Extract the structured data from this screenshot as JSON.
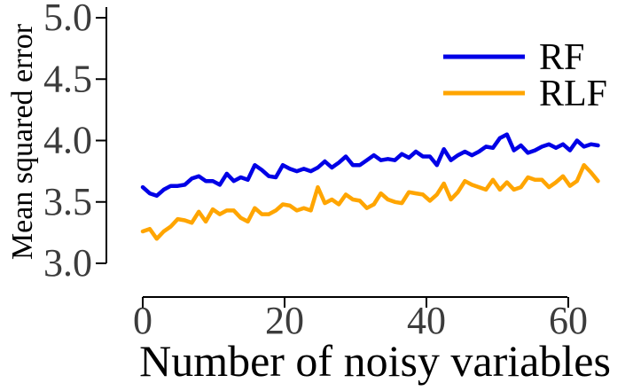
{
  "chart_data": {
    "type": "line",
    "title": "",
    "xlabel": "Number of noisy variables",
    "ylabel": "Mean squared error",
    "xlim": [
      -2,
      69
    ],
    "ylim": [
      2.95,
      5.05
    ],
    "xticks": [
      0,
      20,
      40,
      60
    ],
    "yticks": [
      3.0,
      3.5,
      4.0,
      4.5,
      5.0
    ],
    "xtick_labels": [
      "0",
      "20",
      "40",
      "60"
    ],
    "ytick_labels": [
      "3.0",
      "3.5",
      "4.0",
      "4.5",
      "5.0"
    ],
    "legend_position": "top-right",
    "x": [
      0,
      1,
      2,
      3,
      4,
      5,
      6,
      7,
      8,
      9,
      10,
      11,
      12,
      13,
      14,
      15,
      16,
      17,
      18,
      19,
      20,
      21,
      22,
      23,
      24,
      25,
      26,
      27,
      28,
      29,
      30,
      31,
      32,
      33,
      34,
      35,
      36,
      37,
      38,
      39,
      40,
      41,
      42,
      43,
      44,
      45,
      46,
      47,
      48,
      49,
      50,
      51,
      52,
      53,
      54,
      55,
      56,
      57,
      58,
      59,
      60,
      61,
      62,
      63,
      64,
      65
    ],
    "series": [
      {
        "name": "RF",
        "color": "#0000e6",
        "values": [
          3.62,
          3.57,
          3.55,
          3.6,
          3.63,
          3.63,
          3.64,
          3.69,
          3.71,
          3.67,
          3.67,
          3.64,
          3.73,
          3.67,
          3.7,
          3.68,
          3.8,
          3.76,
          3.71,
          3.7,
          3.8,
          3.77,
          3.75,
          3.77,
          3.75,
          3.78,
          3.83,
          3.78,
          3.82,
          3.87,
          3.8,
          3.8,
          3.84,
          3.88,
          3.84,
          3.85,
          3.84,
          3.89,
          3.86,
          3.91,
          3.87,
          3.87,
          3.8,
          3.93,
          3.84,
          3.88,
          3.91,
          3.88,
          3.91,
          3.95,
          3.94,
          4.02,
          4.05,
          3.92,
          3.96,
          3.9,
          3.92,
          3.95,
          3.97,
          3.94,
          3.97,
          3.92,
          4.0,
          3.95,
          3.97,
          3.96
        ]
      },
      {
        "name": "RLF",
        "color": "#ffa500",
        "values": [
          3.26,
          3.28,
          3.2,
          3.26,
          3.3,
          3.36,
          3.35,
          3.33,
          3.42,
          3.34,
          3.44,
          3.4,
          3.43,
          3.43,
          3.37,
          3.34,
          3.45,
          3.4,
          3.4,
          3.43,
          3.48,
          3.47,
          3.43,
          3.45,
          3.43,
          3.62,
          3.49,
          3.52,
          3.48,
          3.56,
          3.52,
          3.51,
          3.45,
          3.48,
          3.57,
          3.52,
          3.5,
          3.49,
          3.58,
          3.57,
          3.56,
          3.51,
          3.56,
          3.65,
          3.52,
          3.58,
          3.67,
          3.64,
          3.62,
          3.6,
          3.68,
          3.6,
          3.66,
          3.6,
          3.62,
          3.7,
          3.68,
          3.68,
          3.62,
          3.66,
          3.71,
          3.63,
          3.67,
          3.8,
          3.74,
          3.67
        ]
      }
    ]
  }
}
